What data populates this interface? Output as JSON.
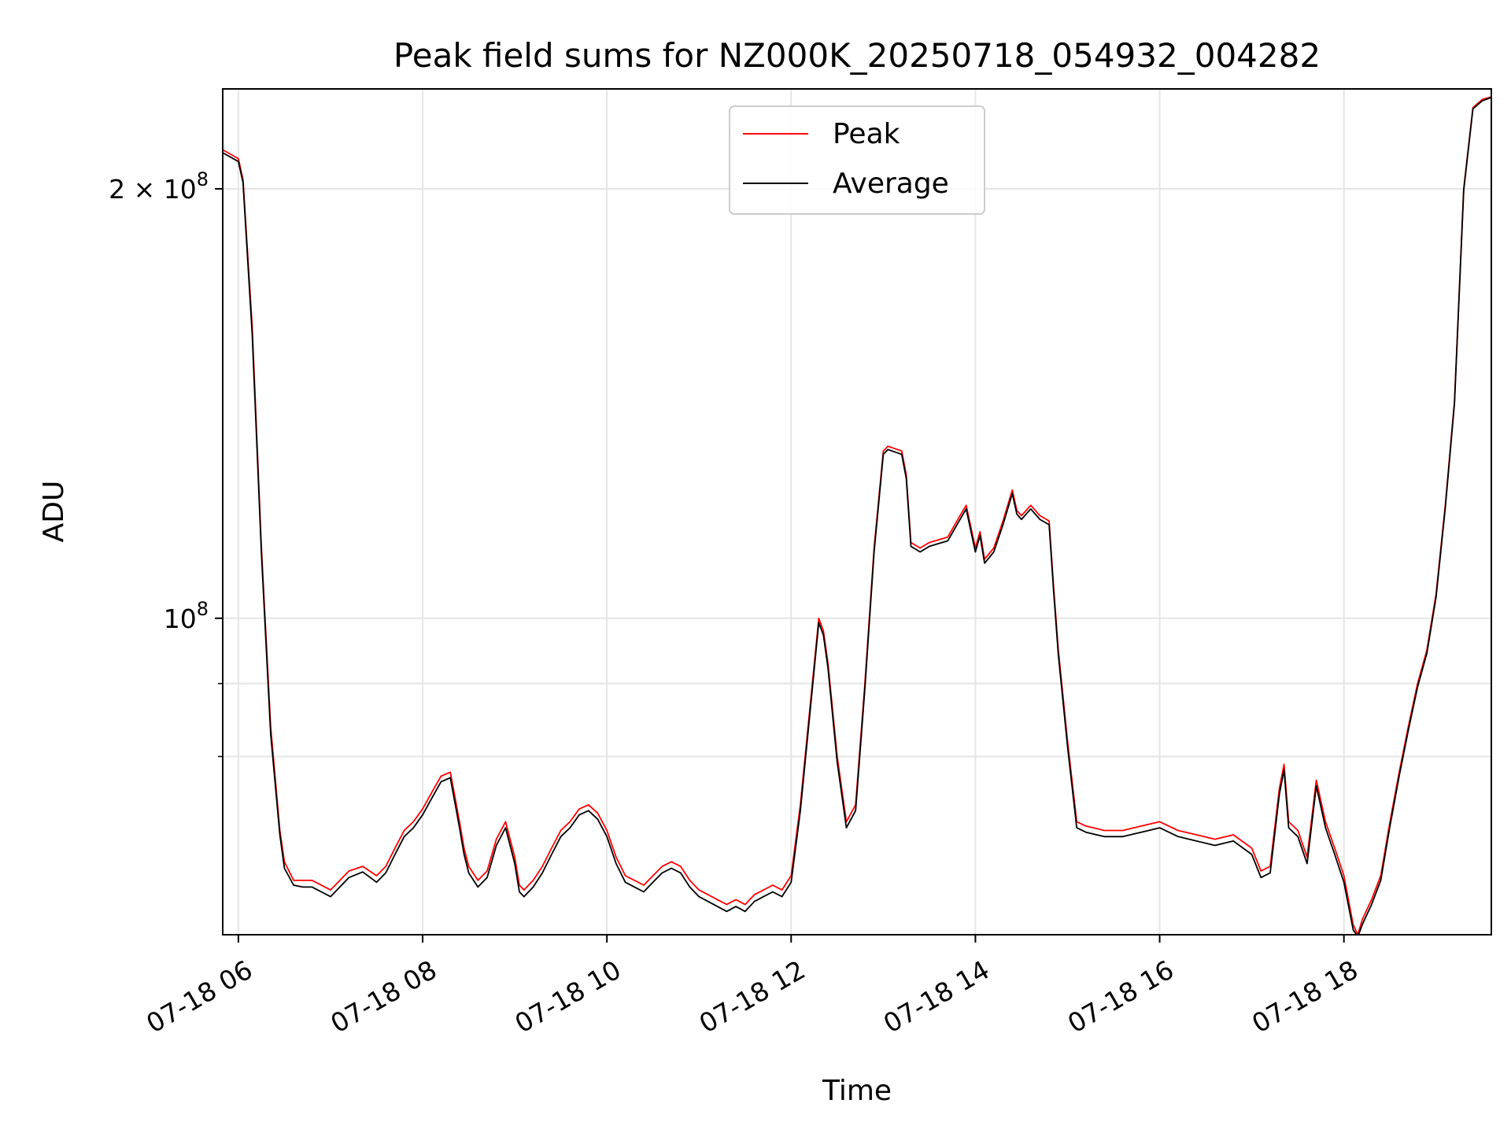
{
  "chart_data": {
    "type": "line",
    "title": "Peak field sums for NZ000K_20250718_054932_004282",
    "xlabel": "Time",
    "ylabel": "ADU",
    "y_scale": "log",
    "ylim": [
      60000000,
      235000000
    ],
    "x_units": "hours on 2025-07-18",
    "xlim": [
      5.83,
      19.6
    ],
    "x_ticks": [
      {
        "value": 6,
        "label": "07-18 06"
      },
      {
        "value": 8,
        "label": "07-18 08"
      },
      {
        "value": 10,
        "label": "07-18 10"
      },
      {
        "value": 12,
        "label": "07-18 12"
      },
      {
        "value": 14,
        "label": "07-18 14"
      },
      {
        "value": 16,
        "label": "07-18 16"
      },
      {
        "value": 18,
        "label": "07-18 18"
      }
    ],
    "y_ticks": [
      {
        "value": 100000000,
        "label": "10^8",
        "base": "10",
        "exp": "8"
      },
      {
        "value": 200000000,
        "label": "2×10^8",
        "prefix": "2 × ",
        "base": "10",
        "exp": "8"
      }
    ],
    "y_minor_gridlines": [
      80000000,
      90000000
    ],
    "grid": true,
    "legend_position": "top-center",
    "colors": {
      "peak": "#ff0000",
      "average": "#000000",
      "grid": "#e5e5e5"
    },
    "series": [
      {
        "name": "Peak",
        "key": "peak",
        "color": "#ff0000",
        "x": [
          5.83,
          6.0,
          6.05,
          6.15,
          6.25,
          6.35,
          6.45,
          6.5,
          6.6,
          6.7,
          6.8,
          7.0,
          7.2,
          7.35,
          7.5,
          7.6,
          7.7,
          7.8,
          7.9,
          8.0,
          8.1,
          8.2,
          8.3,
          8.35,
          8.4,
          8.45,
          8.5,
          8.6,
          8.7,
          8.8,
          8.9,
          9.0,
          9.05,
          9.1,
          9.2,
          9.3,
          9.4,
          9.5,
          9.6,
          9.7,
          9.8,
          9.9,
          10.0,
          10.1,
          10.2,
          10.3,
          10.4,
          10.5,
          10.6,
          10.7,
          10.8,
          10.9,
          11.0,
          11.1,
          11.2,
          11.3,
          11.4,
          11.5,
          11.6,
          11.7,
          11.8,
          11.9,
          12.0,
          12.1,
          12.2,
          12.3,
          12.35,
          12.4,
          12.5,
          12.6,
          12.7,
          12.8,
          12.9,
          13.0,
          13.05,
          13.2,
          13.25,
          13.3,
          13.4,
          13.5,
          13.7,
          13.8,
          13.9,
          14.0,
          14.05,
          14.1,
          14.2,
          14.3,
          14.4,
          14.45,
          14.5,
          14.6,
          14.7,
          14.8,
          14.85,
          14.9,
          15.0,
          15.1,
          15.2,
          15.4,
          15.6,
          15.8,
          16.0,
          16.2,
          16.4,
          16.6,
          16.8,
          17.0,
          17.1,
          17.2,
          17.3,
          17.35,
          17.4,
          17.5,
          17.6,
          17.7,
          17.8,
          17.9,
          18.0,
          18.1,
          18.15,
          18.2,
          18.3,
          18.4,
          18.5,
          18.6,
          18.7,
          18.8,
          18.9,
          19.0,
          19.1,
          19.2,
          19.3,
          19.4,
          19.5,
          19.6
        ],
        "y": [
          213000000,
          210000000,
          203000000,
          160000000,
          112000000,
          84000000,
          71000000,
          67500000,
          65500000,
          65500000,
          65500000,
          64500000,
          66500000,
          67000000,
          66000000,
          67000000,
          69000000,
          71000000,
          72000000,
          73500000,
          75500000,
          77500000,
          78000000,
          75000000,
          72000000,
          69000000,
          67000000,
          65500000,
          66500000,
          70000000,
          72000000,
          68000000,
          65000000,
          64500000,
          65500000,
          67000000,
          69000000,
          71000000,
          72000000,
          73500000,
          74000000,
          73000000,
          71000000,
          68000000,
          66000000,
          65500000,
          65000000,
          66000000,
          67000000,
          67500000,
          67000000,
          65500000,
          64500000,
          64000000,
          63500000,
          63000000,
          63500000,
          63000000,
          64000000,
          64500000,
          65000000,
          64500000,
          66000000,
          74000000,
          86000000,
          100000000,
          98000000,
          93000000,
          80000000,
          72000000,
          74000000,
          90000000,
          112000000,
          131000000,
          132000000,
          131000000,
          126000000,
          113000000,
          112000000,
          113000000,
          114000000,
          117000000,
          120000000,
          112000000,
          115000000,
          110000000,
          112000000,
          117000000,
          123000000,
          119000000,
          118000000,
          120000000,
          118000000,
          117000000,
          105000000,
          95000000,
          82000000,
          72000000,
          71500000,
          71000000,
          71000000,
          71500000,
          72000000,
          71000000,
          70500000,
          70000000,
          70500000,
          69000000,
          66500000,
          67000000,
          76000000,
          79000000,
          72000000,
          71000000,
          68000000,
          77000000,
          72000000,
          69000000,
          66000000,
          61000000,
          60000000,
          61500000,
          63500000,
          66000000,
          72000000,
          78000000,
          84000000,
          90000000,
          95000000,
          104000000,
          120000000,
          142000000,
          200000000,
          228000000,
          231000000,
          232000000
        ]
      },
      {
        "name": "Average",
        "key": "average",
        "color": "#000000",
        "x": [
          5.83,
          6.0,
          6.05,
          6.15,
          6.25,
          6.35,
          6.45,
          6.5,
          6.6,
          6.7,
          6.8,
          7.0,
          7.2,
          7.35,
          7.5,
          7.6,
          7.7,
          7.8,
          7.9,
          8.0,
          8.1,
          8.2,
          8.3,
          8.35,
          8.4,
          8.45,
          8.5,
          8.6,
          8.7,
          8.8,
          8.9,
          9.0,
          9.05,
          9.1,
          9.2,
          9.3,
          9.4,
          9.5,
          9.6,
          9.7,
          9.8,
          9.9,
          10.0,
          10.1,
          10.2,
          10.3,
          10.4,
          10.5,
          10.6,
          10.7,
          10.8,
          10.9,
          11.0,
          11.1,
          11.2,
          11.3,
          11.4,
          11.5,
          11.6,
          11.7,
          11.8,
          11.9,
          12.0,
          12.1,
          12.2,
          12.3,
          12.35,
          12.4,
          12.5,
          12.6,
          12.7,
          12.8,
          12.9,
          13.0,
          13.05,
          13.2,
          13.25,
          13.3,
          13.4,
          13.5,
          13.7,
          13.8,
          13.9,
          14.0,
          14.05,
          14.1,
          14.2,
          14.3,
          14.4,
          14.45,
          14.5,
          14.6,
          14.7,
          14.8,
          14.85,
          14.9,
          15.0,
          15.1,
          15.2,
          15.4,
          15.6,
          15.8,
          16.0,
          16.2,
          16.4,
          16.6,
          16.8,
          17.0,
          17.1,
          17.2,
          17.3,
          17.35,
          17.4,
          17.5,
          17.6,
          17.7,
          17.8,
          17.9,
          18.0,
          18.1,
          18.15,
          18.2,
          18.3,
          18.4,
          18.5,
          18.6,
          18.7,
          18.8,
          18.9,
          19.0,
          19.1,
          19.2,
          19.3,
          19.4,
          19.5,
          19.6
        ],
        "y": [
          212000000,
          209000000,
          202000000,
          158000000,
          111000000,
          83000000,
          70500000,
          66800000,
          65000000,
          64800000,
          64800000,
          63800000,
          65800000,
          66400000,
          65300000,
          66300000,
          68300000,
          70300000,
          71300000,
          72800000,
          74800000,
          76800000,
          77300000,
          74300000,
          71300000,
          68300000,
          66300000,
          64800000,
          65800000,
          69300000,
          71300000,
          67300000,
          64300000,
          63800000,
          64800000,
          66300000,
          68300000,
          70300000,
          71300000,
          72800000,
          73300000,
          72300000,
          70300000,
          67300000,
          65300000,
          64800000,
          64300000,
          65300000,
          66300000,
          66800000,
          66300000,
          64800000,
          63800000,
          63300000,
          62800000,
          62300000,
          62800000,
          62300000,
          63300000,
          63800000,
          64300000,
          63800000,
          65300000,
          73300000,
          85300000,
          99300000,
          97300000,
          92300000,
          79300000,
          71300000,
          73300000,
          89300000,
          111300000,
          130300000,
          131300000,
          130300000,
          125300000,
          112300000,
          111300000,
          112300000,
          113300000,
          116300000,
          119300000,
          111300000,
          114300000,
          109300000,
          111300000,
          116300000,
          122300000,
          118300000,
          117300000,
          119300000,
          117300000,
          116300000,
          104300000,
          94300000,
          81300000,
          71300000,
          70800000,
          70300000,
          70300000,
          70800000,
          71300000,
          70300000,
          69800000,
          69300000,
          69800000,
          68300000,
          65800000,
          66300000,
          75300000,
          78300000,
          71300000,
          70300000,
          67300000,
          76300000,
          71300000,
          68300000,
          65300000,
          60500000,
          59800000,
          61000000,
          63000000,
          65500000,
          71500000,
          77500000,
          83500000,
          89500000,
          94500000,
          103500000,
          119500000,
          141500000,
          199500000,
          227500000,
          230500000,
          231800000
        ]
      }
    ]
  }
}
